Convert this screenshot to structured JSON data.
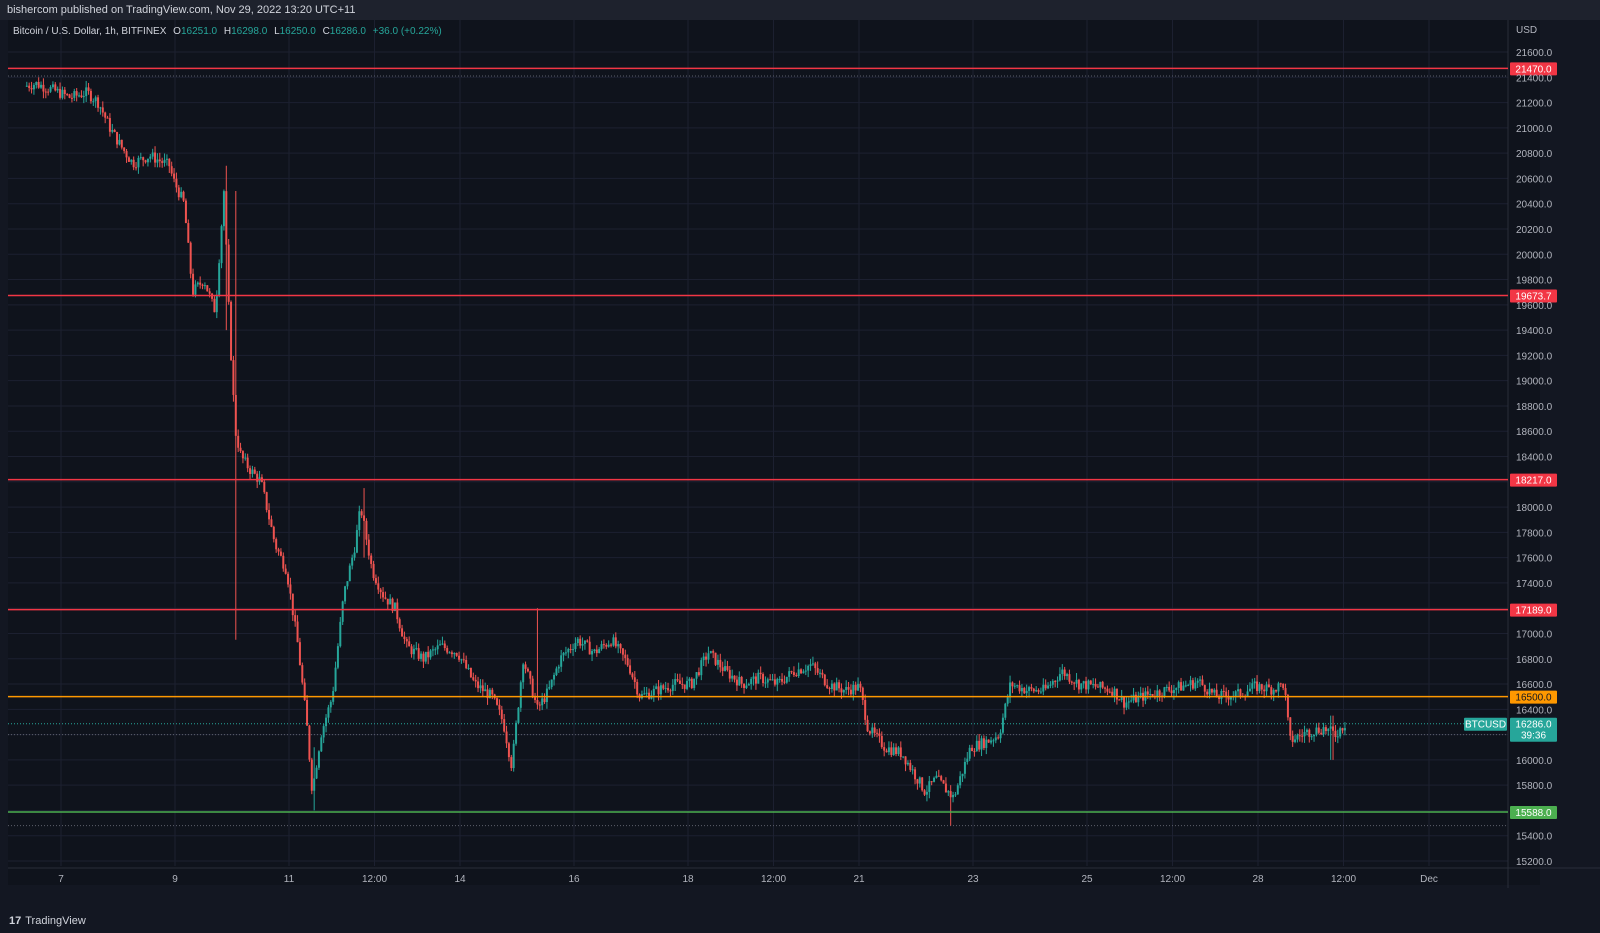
{
  "header": {
    "published_text": "bishercom published on TradingView.com, Nov 29, 2022 13:20 UTC+11"
  },
  "legend": {
    "symbol_text": "Bitcoin / U.S. Dollar, 1h, BITFINEX",
    "o_label": "O",
    "o_value": "16251.0",
    "h_label": "H",
    "h_value": "16298.0",
    "l_label": "L",
    "l_value": "16250.0",
    "c_label": "C",
    "c_value": "16286.0",
    "change": "+36.0 (+0.22%)"
  },
  "footer": {
    "logo_text": "TradingView",
    "logo_icon": "tradingview-logo-icon"
  },
  "colors": {
    "background": "#131722",
    "pane": "#0f131c",
    "grid": "#1c2030",
    "up": "#26a69a",
    "down": "#ef5350",
    "red_line": "#f23645",
    "orange_line": "#ff9800",
    "green_line": "#4caf50",
    "last_price": "#26a69a"
  },
  "chart_data": {
    "type": "candlestick",
    "title": "Bitcoin / U.S. Dollar, 1h, BITFINEX",
    "currency_label": "USD",
    "ylim": [
      15100,
      21800
    ],
    "grid": true,
    "x_domain_days": [
      6.4,
      33.5
    ],
    "x_ticks": [
      {
        "label": "7",
        "day": 7
      },
      {
        "label": "9",
        "day": 9
      },
      {
        "label": "11",
        "day": 11
      },
      {
        "label": "12:00",
        "day": 12.5
      },
      {
        "label": "14",
        "day": 14
      },
      {
        "label": "16",
        "day": 16
      },
      {
        "label": "18",
        "day": 18
      },
      {
        "label": "12:00",
        "day": 19.5
      },
      {
        "label": "21",
        "day": 21
      },
      {
        "label": "23",
        "day": 23
      },
      {
        "label": "25",
        "day": 25
      },
      {
        "label": "12:00",
        "day": 26.5
      },
      {
        "label": "28",
        "day": 28
      },
      {
        "label": "12:00",
        "day": 29.5
      },
      {
        "label": "Dec",
        "day": 31
      }
    ],
    "y_ticks": [
      15200,
      15400,
      15600,
      15800,
      16000,
      16200,
      16400,
      16600,
      16800,
      17000,
      17200,
      17400,
      17600,
      17800,
      18000,
      18200,
      18400,
      18600,
      18800,
      19000,
      19200,
      19400,
      19600,
      19800,
      20000,
      20200,
      20400,
      20600,
      20800,
      21000,
      21200,
      21400,
      21600
    ],
    "horizontal_levels": [
      {
        "value": 21470.0,
        "label": "21470.0",
        "color": "red"
      },
      {
        "value": 19673.7,
        "label": "19673.7",
        "color": "red"
      },
      {
        "value": 18217.0,
        "label": "18217.0",
        "color": "red"
      },
      {
        "value": 17189.0,
        "label": "17189.0",
        "color": "red"
      },
      {
        "value": 16500.0,
        "label": "16500.0",
        "color": "orange"
      },
      {
        "value": 15588.0,
        "label": "15588.0",
        "color": "green"
      }
    ],
    "last_price": {
      "symbol": "BTCUSD",
      "value": 16286.0,
      "label": "16286.0",
      "countdown": "39:36"
    },
    "dotted_levels": [
      21410,
      16200,
      15480
    ],
    "price_path_knots": [
      [
        6.4,
        21330
      ],
      [
        6.6,
        21350
      ],
      [
        6.9,
        21300
      ],
      [
        7.2,
        21240
      ],
      [
        7.5,
        21280
      ],
      [
        7.7,
        21200
      ],
      [
        7.9,
        21000
      ],
      [
        8.1,
        20850
      ],
      [
        8.3,
        20720
      ],
      [
        8.6,
        20780
      ],
      [
        8.95,
        20700
      ],
      [
        9.0,
        20600
      ],
      [
        9.2,
        20400
      ],
      [
        9.35,
        19700
      ],
      [
        9.55,
        19800
      ],
      [
        9.7,
        19600
      ],
      [
        9.75,
        19550
      ],
      [
        9.9,
        20500
      ],
      [
        10.0,
        19400
      ],
      [
        10.1,
        18600
      ],
      [
        10.2,
        18400
      ],
      [
        10.35,
        18300
      ],
      [
        10.55,
        18200
      ],
      [
        10.8,
        17700
      ],
      [
        11.0,
        17500
      ],
      [
        11.2,
        16900
      ],
      [
        11.35,
        16300
      ],
      [
        11.45,
        15750
      ],
      [
        11.6,
        16200
      ],
      [
        11.8,
        16500
      ],
      [
        12.0,
        17300
      ],
      [
        12.2,
        17700
      ],
      [
        12.3,
        18000
      ],
      [
        12.5,
        17500
      ],
      [
        12.7,
        17300
      ],
      [
        12.9,
        17200
      ],
      [
        13.1,
        16900
      ],
      [
        13.4,
        16800
      ],
      [
        13.7,
        16900
      ],
      [
        14.0,
        16850
      ],
      [
        14.3,
        16600
      ],
      [
        14.6,
        16500
      ],
      [
        14.8,
        16300
      ],
      [
        14.95,
        15950
      ],
      [
        15.15,
        16800
      ],
      [
        15.4,
        16400
      ],
      [
        15.6,
        16550
      ],
      [
        15.8,
        16800
      ],
      [
        16.1,
        16950
      ],
      [
        16.4,
        16850
      ],
      [
        16.7,
        16950
      ],
      [
        17.0,
        16750
      ],
      [
        17.2,
        16500
      ],
      [
        17.5,
        16550
      ],
      [
        17.8,
        16600
      ],
      [
        18.1,
        16600
      ],
      [
        18.4,
        16850
      ],
      [
        18.7,
        16700
      ],
      [
        19.0,
        16600
      ],
      [
        19.3,
        16650
      ],
      [
        19.6,
        16600
      ],
      [
        19.9,
        16700
      ],
      [
        20.2,
        16750
      ],
      [
        20.5,
        16600
      ],
      [
        20.8,
        16550
      ],
      [
        21.05,
        16580
      ],
      [
        21.2,
        16250
      ],
      [
        21.5,
        16100
      ],
      [
        21.8,
        16050
      ],
      [
        22.0,
        15900
      ],
      [
        22.2,
        15750
      ],
      [
        22.4,
        15850
      ],
      [
        22.7,
        15700
      ],
      [
        23.0,
        16100
      ],
      [
        23.3,
        16150
      ],
      [
        23.5,
        16200
      ],
      [
        23.7,
        16600
      ],
      [
        24.0,
        16550
      ],
      [
        24.3,
        16550
      ],
      [
        24.6,
        16700
      ],
      [
        24.9,
        16600
      ],
      [
        25.2,
        16580
      ],
      [
        25.5,
        16550
      ],
      [
        25.7,
        16450
      ],
      [
        26.0,
        16500
      ],
      [
        26.4,
        16550
      ],
      [
        26.7,
        16580
      ],
      [
        27.0,
        16620
      ],
      [
        27.3,
        16500
      ],
      [
        27.7,
        16520
      ],
      [
        28.0,
        16580
      ],
      [
        28.3,
        16560
      ],
      [
        28.5,
        16600
      ],
      [
        28.6,
        16150
      ],
      [
        28.9,
        16220
      ],
      [
        29.2,
        16250
      ],
      [
        29.4,
        16200
      ],
      [
        29.55,
        16280
      ]
    ],
    "wick_extremes": [
      {
        "day": 9.9,
        "high": 20700,
        "low": 19400
      },
      {
        "day": 10.05,
        "high": 20500,
        "low": 16950
      },
      {
        "day": 11.45,
        "high": 16100,
        "low": 15600
      },
      {
        "day": 12.3,
        "high": 18150,
        "low": 17600
      },
      {
        "day": 15.35,
        "high": 17200,
        "low": 16400
      },
      {
        "day": 22.6,
        "high": 15800,
        "low": 15480
      },
      {
        "day": 29.3,
        "high": 16350,
        "low": 16000
      }
    ]
  }
}
